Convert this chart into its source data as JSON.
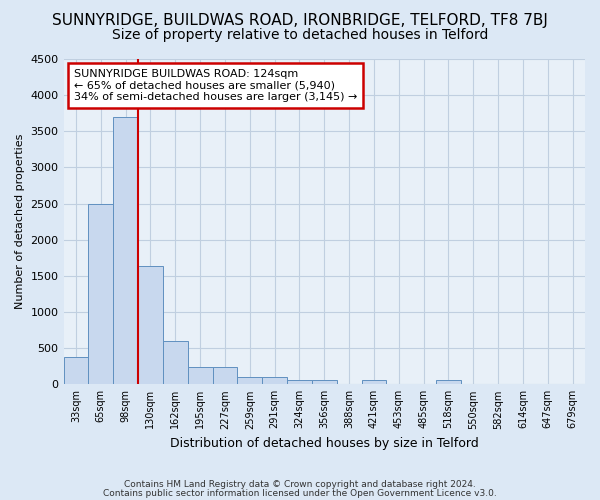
{
  "title": "SUNNYRIDGE, BUILDWAS ROAD, IRONBRIDGE, TELFORD, TF8 7BJ",
  "subtitle": "Size of property relative to detached houses in Telford",
  "xlabel": "Distribution of detached houses by size in Telford",
  "ylabel": "Number of detached properties",
  "footer1": "Contains HM Land Registry data © Crown copyright and database right 2024.",
  "footer2": "Contains public sector information licensed under the Open Government Licence v3.0.",
  "categories": [
    "33sqm",
    "65sqm",
    "98sqm",
    "130sqm",
    "162sqm",
    "195sqm",
    "227sqm",
    "259sqm",
    "291sqm",
    "324sqm",
    "356sqm",
    "388sqm",
    "421sqm",
    "453sqm",
    "485sqm",
    "518sqm",
    "550sqm",
    "582sqm",
    "614sqm",
    "647sqm",
    "679sqm"
  ],
  "values": [
    375,
    2500,
    3700,
    1630,
    600,
    240,
    240,
    100,
    100,
    60,
    55,
    0,
    55,
    0,
    0,
    60,
    0,
    0,
    0,
    0,
    0
  ],
  "bar_color": "#c8d8ee",
  "bar_edge_color": "#6090c0",
  "red_line_color": "#cc0000",
  "red_line_index": 3,
  "annotation_text": "SUNNYRIDGE BUILDWAS ROAD: 124sqm\n← 65% of detached houses are smaller (5,940)\n34% of semi-detached houses are larger (3,145) →",
  "annotation_box_facecolor": "#ffffff",
  "annotation_box_edgecolor": "#cc0000",
  "ylim": [
    0,
    4500
  ],
  "yticks": [
    0,
    500,
    1000,
    1500,
    2000,
    2500,
    3000,
    3500,
    4000,
    4500
  ],
  "bg_color": "#dce8f5",
  "grid_color": "#c0cfe0",
  "title_fontsize": 11,
  "subtitle_fontsize": 10,
  "axis_bg_color": "#e8f0f8"
}
